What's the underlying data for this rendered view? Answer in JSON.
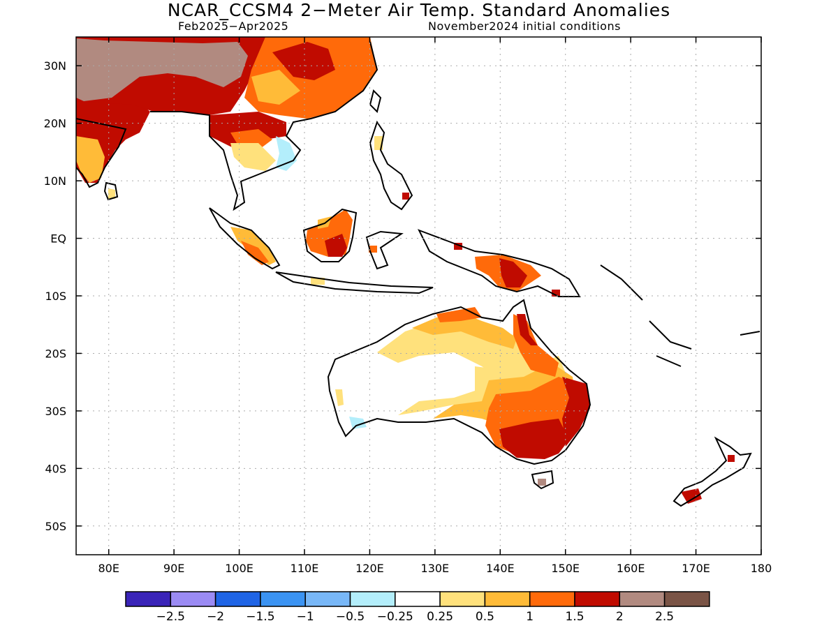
{
  "title": "NCAR_CCSM4 2−Meter Air Temp. Standard Anomalies",
  "subtitle_left": "Feb2025−Apr2025",
  "subtitle_right": "November2024 initial conditions",
  "map": {
    "lon_range": [
      75,
      180
    ],
    "lat_range": [
      -55,
      35
    ],
    "x_ticks": [
      "80E",
      "90E",
      "100E",
      "110E",
      "120E",
      "130E",
      "140E",
      "150E",
      "160E",
      "170E",
      "180"
    ],
    "y_ticks": [
      "30N",
      "20N",
      "10N",
      "EQ",
      "10S",
      "20S",
      "30S",
      "40S",
      "50S"
    ],
    "grid": "dotted"
  },
  "colorbar": {
    "colors": [
      "#3a24b8",
      "#9b8bf4",
      "#1f64e5",
      "#3b93f2",
      "#78b7f7",
      "#b3eefb",
      "#ffffff",
      "#ffe17c",
      "#ffbb38",
      "#ff6a0a",
      "#c00b00",
      "#b18a80",
      "#7a5446"
    ],
    "labels": [
      "−2.5",
      "−2",
      "−1.5",
      "−1",
      "−0.5",
      "−0.25",
      "0.25",
      "0.5",
      "1",
      "1.5",
      "2",
      "2.5"
    ]
  },
  "legend": {
    "white": "#ffffff",
    "yellow": "#ffe17c",
    "orange": "#ffbb38",
    "dark_orange": "#ff6a0a",
    "red": "#c00b00",
    "brown": "#b18a80",
    "light_blue": "#b3eefb"
  }
}
